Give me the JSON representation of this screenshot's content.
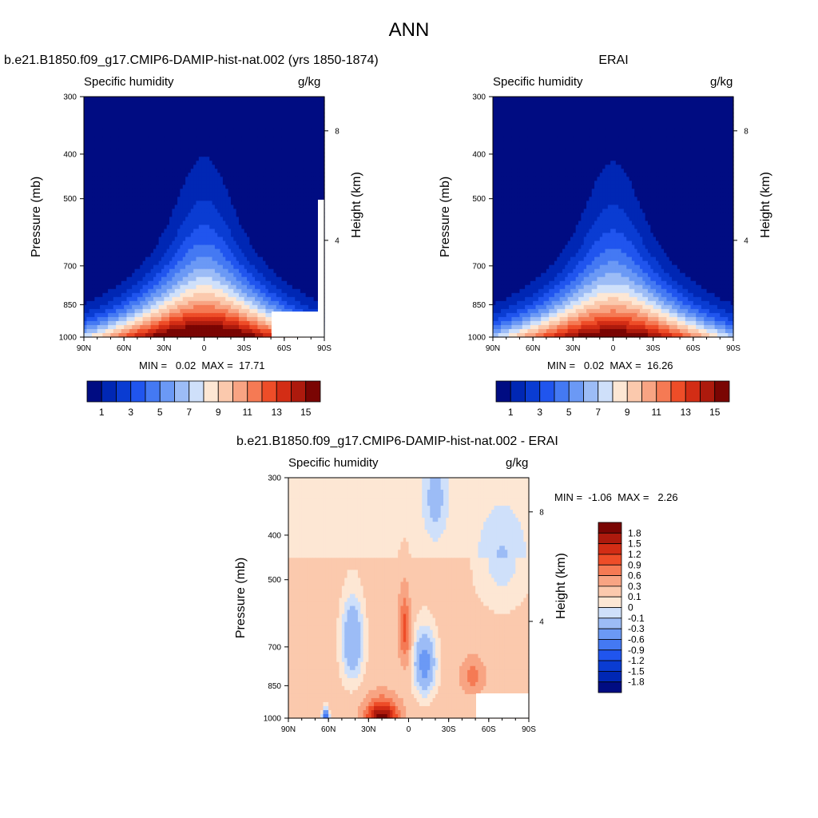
{
  "page_title": "ANN",
  "panels": [
    {
      "title": "b.e21.B1850.f09_g17.CMIP6-DAMIP-hist-nat.002 (yrs 1850-1874)",
      "left_label": "Specific humidity",
      "right_label": "g/kg",
      "ylabel": "Pressure (mb)",
      "ylabel_right": "Height (km)",
      "stats": "MIN =   0.02  MAX =  17.71"
    },
    {
      "title": "ERAI",
      "left_label": "Specific humidity",
      "right_label": "g/kg",
      "ylabel": "Pressure (mb)",
      "ylabel_right": "Height (km)",
      "stats": "MIN =   0.02  MAX =  16.26"
    },
    {
      "title": "b.e21.B1850.f09_g17.CMIP6-DAMIP-hist-nat.002 - ERAI",
      "left_label": "Specific humidity",
      "right_label": "g/kg",
      "ylabel": "Pressure (mb)",
      "ylabel_right": "Height (km)",
      "stats": "MIN =  -1.06  MAX =   2.26"
    }
  ],
  "chart_data": [
    {
      "type": "heatmap",
      "x_ticks": [
        "90N",
        "60N",
        "30N",
        "0",
        "30S",
        "60S",
        "90S"
      ],
      "y_ticks": [
        "300",
        "400",
        "500",
        "700",
        "850",
        "1000"
      ],
      "y_ticks_right": [
        "8",
        "4"
      ],
      "levels": [
        1,
        2,
        3,
        4,
        5,
        6,
        7,
        8,
        9,
        10,
        11,
        12,
        13,
        14,
        15
      ],
      "colorbar_labels": [
        "1",
        "3",
        "5",
        "7",
        "9",
        "11",
        "13",
        "15"
      ],
      "colors": [
        "#000c82",
        "#0027b4",
        "#0a3cd2",
        "#2055ee",
        "#4479f3",
        "#6b99f5",
        "#9cbcf6",
        "#cfe0fa",
        "#fde7d4",
        "#fbc9ad",
        "#f8a483",
        "#f57a54",
        "#ee4d28",
        "#d32d15",
        "#ad1a0d",
        "#7a0503"
      ],
      "min": 0.02,
      "max": 17.71,
      "peak": 17.71,
      "dry_above_700_north": true
    },
    {
      "type": "heatmap",
      "x_ticks": [
        "90N",
        "60N",
        "30N",
        "0",
        "30S",
        "60S",
        "90S"
      ],
      "y_ticks": [
        "300",
        "400",
        "500",
        "700",
        "850",
        "1000"
      ],
      "y_ticks_right": [
        "8",
        "4"
      ],
      "levels": [
        1,
        2,
        3,
        4,
        5,
        6,
        7,
        8,
        9,
        10,
        11,
        12,
        13,
        14,
        15
      ],
      "colorbar_labels": [
        "1",
        "3",
        "5",
        "7",
        "9",
        "11",
        "13",
        "15"
      ],
      "colors": [
        "#000c82",
        "#0027b4",
        "#0a3cd2",
        "#2055ee",
        "#4479f3",
        "#6b99f5",
        "#9cbcf6",
        "#cfe0fa",
        "#fde7d4",
        "#fbc9ad",
        "#f8a483",
        "#f57a54",
        "#ee4d28",
        "#d32d15",
        "#ad1a0d",
        "#7a0503"
      ],
      "min": 0.02,
      "max": 16.26,
      "peak": 16.26
    },
    {
      "type": "heatmap",
      "x_ticks": [
        "90N",
        "60N",
        "30N",
        "0",
        "30S",
        "60S",
        "90S"
      ],
      "y_ticks": [
        "300",
        "400",
        "500",
        "700",
        "850",
        "1000"
      ],
      "y_ticks_right": [
        "8",
        "4"
      ],
      "levels": [
        -1.8,
        -1.5,
        -1.2,
        -0.9,
        -0.6,
        -0.3,
        -0.1,
        0,
        0.1,
        0.3,
        0.6,
        0.9,
        1.2,
        1.5,
        1.8
      ],
      "colorbar_labels": [
        "1.8",
        "1.5",
        "1.2",
        "0.9",
        "0.6",
        "0.3",
        "0.1",
        "0",
        "-0.1",
        "-0.3",
        "-0.6",
        "-0.9",
        "-1.2",
        "-1.5",
        "-1.8"
      ],
      "colors": [
        "#000c82",
        "#0027b4",
        "#0a3cd2",
        "#2055ee",
        "#4479f3",
        "#6b99f5",
        "#9cbcf6",
        "#cfe0fa",
        "#fde7d4",
        "#fbc9ad",
        "#f8a483",
        "#f57a54",
        "#ee4d28",
        "#d32d15",
        "#ad1a0d",
        "#7a0503"
      ],
      "min": -1.06,
      "max": 2.26
    }
  ]
}
